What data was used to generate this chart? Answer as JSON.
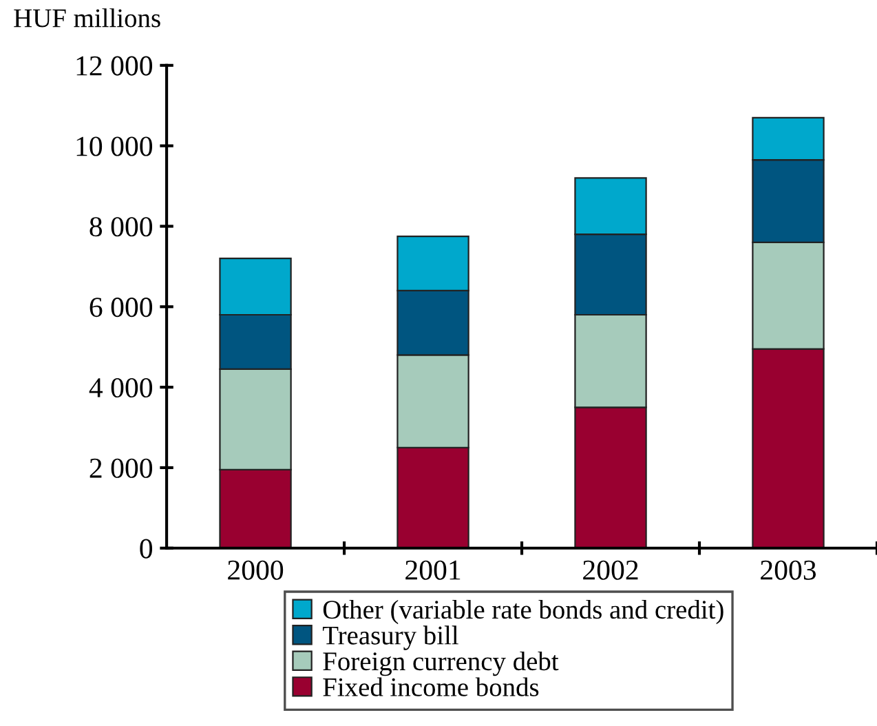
{
  "chart_data": {
    "type": "bar",
    "stacked": true,
    "ylabel": "HUF millions",
    "categories": [
      "2000",
      "2001",
      "2002",
      "2003"
    ],
    "series": [
      {
        "name": "Fixed income bonds",
        "color": "#990030",
        "values": [
          1950,
          2500,
          3500,
          4950
        ]
      },
      {
        "name": "Foreign currency debt",
        "color": "#a6cbbb",
        "values": [
          2500,
          2300,
          2300,
          2650
        ]
      },
      {
        "name": "Treasury bill",
        "color": "#005580",
        "values": [
          1350,
          1600,
          2000,
          2050
        ]
      },
      {
        "name": "Other (variable rate bonds and credit)",
        "color": "#00a8cc",
        "values": [
          1400,
          1350,
          1400,
          1050
        ]
      }
    ],
    "ylim": [
      0,
      12000
    ],
    "yticks": [
      0,
      {
        "value": 2000,
        "label": "2 000"
      },
      {
        "value": 4000,
        "label": "4 000"
      },
      {
        "value": 6000,
        "label": "6 000"
      },
      {
        "value": 8000,
        "label": "8 000"
      },
      {
        "value": 10000,
        "label": "10 000"
      },
      {
        "value": 12000,
        "label": "12 000"
      }
    ],
    "grid": false,
    "legend": "bottom"
  }
}
